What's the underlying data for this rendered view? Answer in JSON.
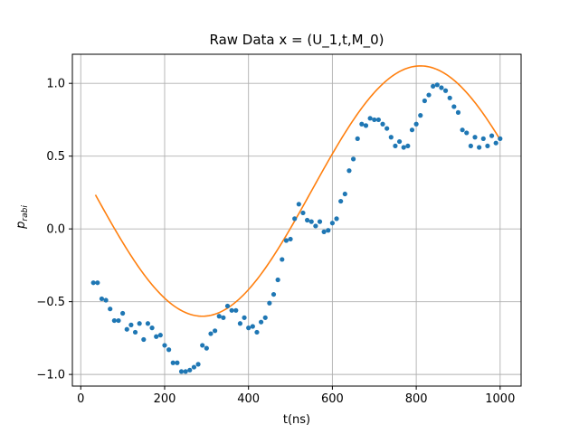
{
  "chart_data": {
    "type": "scatter",
    "title": "Raw Data x = (U_1,t,M_0)",
    "xlabel": "t(ns)",
    "ylabel_main": "p",
    "ylabel_sub": "rabi",
    "xlim": [
      -20,
      1050
    ],
    "ylim": [
      -1.08,
      1.2
    ],
    "xticks": [
      0,
      200,
      400,
      600,
      800,
      1000
    ],
    "yticks": [
      -1.0,
      -0.5,
      0.0,
      0.5,
      1.0
    ],
    "xtick_labels": [
      "0",
      "200",
      "400",
      "600",
      "800",
      "1000"
    ],
    "ytick_labels": [
      "−1.0",
      "−0.5",
      "0.0",
      "0.5",
      "1.0"
    ],
    "grid": true,
    "colors": {
      "points": "#1f77b4",
      "fit": "#ff7f0e",
      "grid": "#b0b0b0"
    },
    "fit": {
      "type": "line",
      "x_range": [
        35,
        1000
      ],
      "form": "offset + amplitude * sin(2*pi*(x - x0)/period)",
      "amplitude": 0.86,
      "offset": 0.26,
      "x0": 550,
      "period": 1040
    },
    "points": {
      "x": [
        30,
        40,
        50,
        60,
        70,
        80,
        90,
        100,
        110,
        120,
        130,
        140,
        150,
        160,
        170,
        180,
        190,
        200,
        210,
        220,
        230,
        240,
        250,
        260,
        270,
        280,
        290,
        300,
        310,
        320,
        330,
        340,
        350,
        360,
        370,
        380,
        390,
        400,
        410,
        420,
        430,
        440,
        450,
        460,
        470,
        480,
        490,
        500,
        510,
        520,
        530,
        540,
        550,
        560,
        570,
        580,
        590,
        600,
        610,
        620,
        630,
        640,
        650,
        660,
        670,
        680,
        690,
        700,
        710,
        720,
        730,
        740,
        750,
        760,
        770,
        780,
        790,
        800,
        810,
        820,
        830,
        840,
        850,
        860,
        870,
        880,
        890,
        900,
        910,
        920,
        930,
        940,
        950,
        960,
        970,
        980,
        990,
        1000
      ],
      "y": [
        -0.37,
        -0.37,
        -0.48,
        -0.49,
        -0.55,
        -0.63,
        -0.63,
        -0.58,
        -0.69,
        -0.66,
        -0.71,
        -0.65,
        -0.76,
        -0.65,
        -0.68,
        -0.74,
        -0.73,
        -0.8,
        -0.83,
        -0.92,
        -0.92,
        -0.98,
        -0.98,
        -0.97,
        -0.95,
        -0.93,
        -0.8,
        -0.82,
        -0.72,
        -0.7,
        -0.6,
        -0.61,
        -0.53,
        -0.56,
        -0.56,
        -0.65,
        -0.61,
        -0.68,
        -0.67,
        -0.71,
        -0.64,
        -0.61,
        -0.51,
        -0.45,
        -0.35,
        -0.21,
        -0.08,
        -0.07,
        0.07,
        0.17,
        0.11,
        0.06,
        0.05,
        0.02,
        0.05,
        -0.02,
        -0.01,
        0.04,
        0.07,
        0.19,
        0.24,
        0.4,
        0.48,
        0.62,
        0.72,
        0.71,
        0.76,
        0.75,
        0.75,
        0.72,
        0.69,
        0.63,
        0.57,
        0.6,
        0.56,
        0.57,
        0.68,
        0.72,
        0.78,
        0.88,
        0.92,
        0.98,
        0.99,
        0.97,
        0.95,
        0.9,
        0.84,
        0.8,
        0.68,
        0.66,
        0.57,
        0.63,
        0.56,
        0.62,
        0.57,
        0.64,
        0.59,
        0.62
      ]
    }
  }
}
